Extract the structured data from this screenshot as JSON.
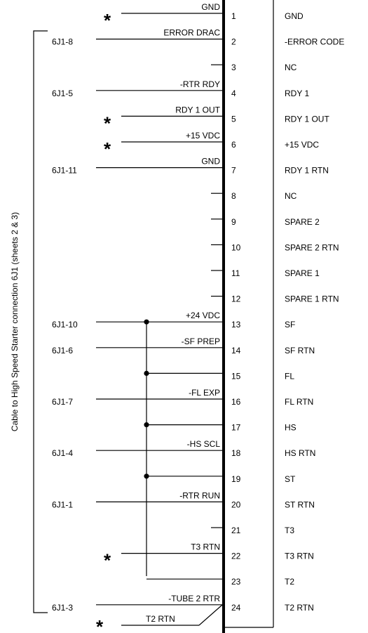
{
  "side_label": "Cable to High Speed Starter connection 6J1 (sheets 2 & 3)",
  "star_symbol": "*",
  "pins": [
    {
      "num": "1",
      "signal": "GND",
      "wire_label": "GND",
      "connector": "",
      "star": true
    },
    {
      "num": "2",
      "signal": "-ERROR CODE",
      "wire_label": "ERROR DRAC",
      "connector": "6J1-8",
      "star": false
    },
    {
      "num": "3",
      "signal": "NC",
      "wire_label": "",
      "connector": "",
      "star": false
    },
    {
      "num": "4",
      "signal": "RDY 1",
      "wire_label": "-RTR RDY",
      "connector": "6J1-5",
      "star": false
    },
    {
      "num": "5",
      "signal": "RDY 1 OUT",
      "wire_label": "RDY 1 OUT",
      "connector": "",
      "star": true
    },
    {
      "num": "6",
      "signal": "+15 VDC",
      "wire_label": "+15 VDC",
      "connector": "",
      "star": true
    },
    {
      "num": "7",
      "signal": "RDY 1 RTN",
      "wire_label": "GND",
      "connector": "6J1-11",
      "star": false
    },
    {
      "num": "8",
      "signal": "NC",
      "wire_label": "",
      "connector": "",
      "star": false
    },
    {
      "num": "9",
      "signal": "SPARE 2",
      "wire_label": "",
      "connector": "",
      "star": false
    },
    {
      "num": "10",
      "signal": "SPARE 2 RTN",
      "wire_label": "",
      "connector": "",
      "star": false
    },
    {
      "num": "11",
      "signal": "SPARE 1",
      "wire_label": "",
      "connector": "",
      "star": false
    },
    {
      "num": "12",
      "signal": "SPARE 1 RTN",
      "wire_label": "",
      "connector": "",
      "star": false
    },
    {
      "num": "13",
      "signal": "SF",
      "wire_label": "+24 VDC",
      "connector": "6J1-10",
      "star": false
    },
    {
      "num": "14",
      "signal": "SF RTN",
      "wire_label": "-SF PREP",
      "connector": "6J1-6",
      "star": false
    },
    {
      "num": "15",
      "signal": "FL",
      "wire_label": "",
      "connector": "",
      "star": false
    },
    {
      "num": "16",
      "signal": "FL RTN",
      "wire_label": "-FL EXP",
      "connector": "6J1-7",
      "star": false
    },
    {
      "num": "17",
      "signal": "HS",
      "wire_label": "",
      "connector": "",
      "star": false
    },
    {
      "num": "18",
      "signal": "HS RTN",
      "wire_label": "-HS SCL",
      "connector": "6J1-4",
      "star": false
    },
    {
      "num": "19",
      "signal": "ST",
      "wire_label": "",
      "connector": "",
      "star": false
    },
    {
      "num": "20",
      "signal": "ST RTN",
      "wire_label": "-RTR RUN",
      "connector": "6J1-1",
      "star": false
    },
    {
      "num": "21",
      "signal": "T3",
      "wire_label": "",
      "connector": "",
      "star": false
    },
    {
      "num": "22",
      "signal": "T3 RTN",
      "wire_label": "T3 RTN",
      "connector": "",
      "star": true
    },
    {
      "num": "23",
      "signal": "T2",
      "wire_label": "",
      "connector": "",
      "star": false
    },
    {
      "num": "24",
      "signal": "T2 RTN",
      "wire_label": "-TUBE 2 RTR",
      "connector": "6J1-3",
      "star": false
    }
  ],
  "extra_wire": {
    "wire_label": "T2 RTN",
    "star": true
  }
}
